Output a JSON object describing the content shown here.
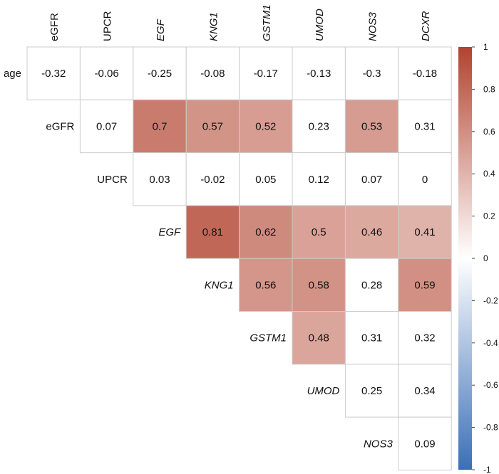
{
  "chart_data": {
    "type": "heatmap",
    "title": "",
    "column_labels": [
      "eGFR",
      "UPCR",
      "EGF",
      "KNG1",
      "GSTM1",
      "UMOD",
      "NOS3",
      "DCXR"
    ],
    "row_labels": [
      "age",
      "eGFR",
      "UPCR",
      "EGF",
      "KNG1",
      "GSTM1",
      "UMOD",
      "NOS3"
    ],
    "italic_labels": [
      "EGF",
      "KNG1",
      "GSTM1",
      "UMOD",
      "NOS3",
      "DCXR"
    ],
    "layout": "upper-triangle",
    "values": [
      [
        -0.32,
        -0.06,
        -0.25,
        -0.08,
        -0.17,
        -0.13,
        -0.3,
        -0.18
      ],
      [
        null,
        0.07,
        0.7,
        0.57,
        0.52,
        0.23,
        0.53,
        0.31
      ],
      [
        null,
        null,
        0.03,
        -0.02,
        0.05,
        0.12,
        0.07,
        0
      ],
      [
        null,
        null,
        null,
        0.81,
        0.62,
        0.5,
        0.46,
        0.41
      ],
      [
        null,
        null,
        null,
        null,
        0.56,
        0.58,
        0.28,
        0.59
      ],
      [
        null,
        null,
        null,
        null,
        null,
        0.48,
        0.31,
        0.32
      ],
      [
        null,
        null,
        null,
        null,
        null,
        null,
        0.25,
        0.34
      ],
      [
        null,
        null,
        null,
        null,
        null,
        null,
        null,
        0.09
      ]
    ],
    "colored": [
      [
        false,
        false,
        false,
        false,
        false,
        false,
        false,
        false
      ],
      [
        false,
        false,
        true,
        true,
        true,
        false,
        true,
        false
      ],
      [
        false,
        false,
        false,
        false,
        false,
        false,
        false,
        false
      ],
      [
        false,
        false,
        false,
        true,
        true,
        true,
        true,
        true
      ],
      [
        false,
        false,
        false,
        false,
        true,
        true,
        false,
        true
      ],
      [
        false,
        false,
        false,
        false,
        false,
        true,
        false,
        false
      ],
      [
        false,
        false,
        false,
        false,
        false,
        false,
        false,
        false
      ],
      [
        false,
        false,
        false,
        false,
        false,
        false,
        false,
        false
      ]
    ],
    "colorbar": {
      "range": [
        -1,
        1
      ],
      "ticks": [
        "1",
        "0.8",
        "0.6",
        "0.4",
        "0.2",
        "0",
        "-0.2",
        "-0.4",
        "-0.6",
        "-0.8",
        "-1"
      ],
      "tick_values": [
        1,
        0.8,
        0.6,
        0.4,
        0.2,
        0,
        -0.2,
        -0.4,
        -0.6,
        -0.8,
        -1
      ],
      "colors": {
        "high": "#b2432f",
        "mid": "#ffffff",
        "low": "#3b6fb6"
      }
    },
    "grid_color": "#cccccc"
  }
}
